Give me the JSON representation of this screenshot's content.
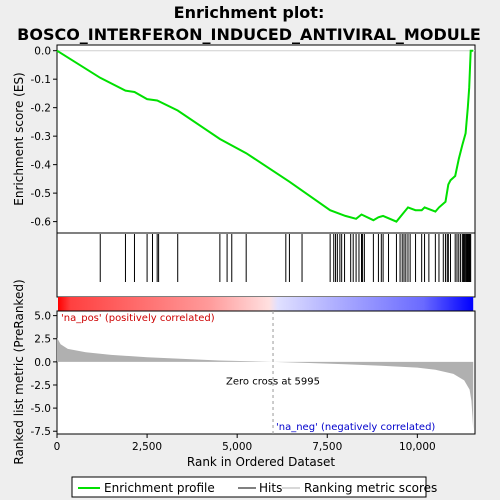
{
  "chart_data": {
    "type": "line",
    "title_line1": "Enrichment plot:",
    "title_line2": "BOSCO_INTERFERON_INDUCED_ANTIVIRAL_MODULE",
    "xlabel": "Rank in Ordered Dataset",
    "ylabel_top": "Enrichment score (ES)",
    "ylabel_bottom": "Ranked list metric (PreRanked)",
    "xlim": [
      0,
      11600
    ],
    "es_ylim": [
      -0.64,
      0.02
    ],
    "metric_ylim": [
      -7.8,
      5.5
    ],
    "x_ticks": [
      "0",
      "2,500",
      "5,000",
      "7,500",
      "10,000"
    ],
    "x_tick_values": [
      0,
      2500,
      5000,
      7500,
      10000
    ],
    "es_ticks": [
      "0.0",
      "-0.1",
      "-0.2",
      "-0.3",
      "-0.4",
      "-0.5",
      "-0.6"
    ],
    "es_tick_values": [
      0.0,
      -0.1,
      -0.2,
      -0.3,
      -0.4,
      -0.5,
      -0.6
    ],
    "metric_ticks": [
      "5.0",
      "2.5",
      "0.0",
      "-2.5",
      "-5.0",
      "-7.5"
    ],
    "metric_tick_values": [
      5.0,
      2.5,
      0.0,
      -2.5,
      -5.0,
      -7.5
    ],
    "annotations": {
      "pos_label": "'na_pos' (positively correlated)",
      "neg_label": "'na_neg' (negatively correlated)",
      "zero_cross": "Zero cross at 5995"
    },
    "zero_cross_rank": 5995,
    "total_ranks": 11550,
    "hits": [
      1200,
      1900,
      2150,
      2500,
      2650,
      2780,
      2820,
      3350,
      4520,
      4720,
      4850,
      5250,
      6350,
      6450,
      6800,
      7580,
      7680,
      7730,
      7780,
      7850,
      7900,
      7980,
      8150,
      8220,
      8300,
      8380,
      8450,
      8480,
      8530,
      8780,
      8920,
      9000,
      9050,
      9200,
      9420,
      9520,
      9580,
      9630,
      9680,
      9740,
      9800,
      9950,
      10120,
      10200,
      10320,
      10500,
      10600,
      10720,
      10780,
      10830,
      10860,
      10920,
      11050,
      11100,
      11150,
      11200,
      11250,
      11280,
      11310,
      11340,
      11360,
      11380,
      11400,
      11420,
      11440,
      11460,
      11480
    ],
    "es_profile": {
      "x": [
        0,
        1200,
        1900,
        2150,
        2500,
        2780,
        3350,
        4520,
        5250,
        6450,
        7580,
        8000,
        8300,
        8450,
        8780,
        8920,
        9050,
        9420,
        9580,
        9740,
        9950,
        10120,
        10200,
        10500,
        10600,
        10780,
        10860,
        10920,
        11050,
        11150,
        11250,
        11340,
        11400,
        11440,
        11460,
        11480,
        11550
      ],
      "y": [
        0.0,
        -0.095,
        -0.14,
        -0.145,
        -0.17,
        -0.175,
        -0.21,
        -0.31,
        -0.36,
        -0.46,
        -0.56,
        -0.58,
        -0.59,
        -0.575,
        -0.595,
        -0.585,
        -0.58,
        -0.6,
        -0.575,
        -0.55,
        -0.56,
        -0.56,
        -0.55,
        -0.565,
        -0.55,
        -0.53,
        -0.47,
        -0.455,
        -0.44,
        -0.38,
        -0.33,
        -0.29,
        -0.2,
        -0.13,
        -0.06,
        0.0,
        0.0
      ]
    },
    "metric_profile": {
      "x": [
        0,
        100,
        300,
        800,
        1500,
        2500,
        3500,
        4500,
        5995,
        7000,
        8000,
        9000,
        10000,
        10500,
        11000,
        11300,
        11450,
        11500,
        11530,
        11550
      ],
      "y": [
        2.6,
        1.9,
        1.4,
        1.05,
        0.75,
        0.5,
        0.32,
        0.15,
        0.0,
        -0.12,
        -0.25,
        -0.42,
        -0.62,
        -0.85,
        -1.3,
        -2.0,
        -3.0,
        -4.2,
        -6.0,
        -7.3
      ]
    },
    "legend": [
      "Enrichment profile",
      "Hits",
      "Ranking metric scores"
    ],
    "colors": {
      "es_line": "#00e000",
      "hit": "#000000",
      "metric_fill": "#b0b0b0",
      "pos": "#ff0000",
      "neg": "#0000ff",
      "zero_line": "#9a9a9a"
    }
  }
}
